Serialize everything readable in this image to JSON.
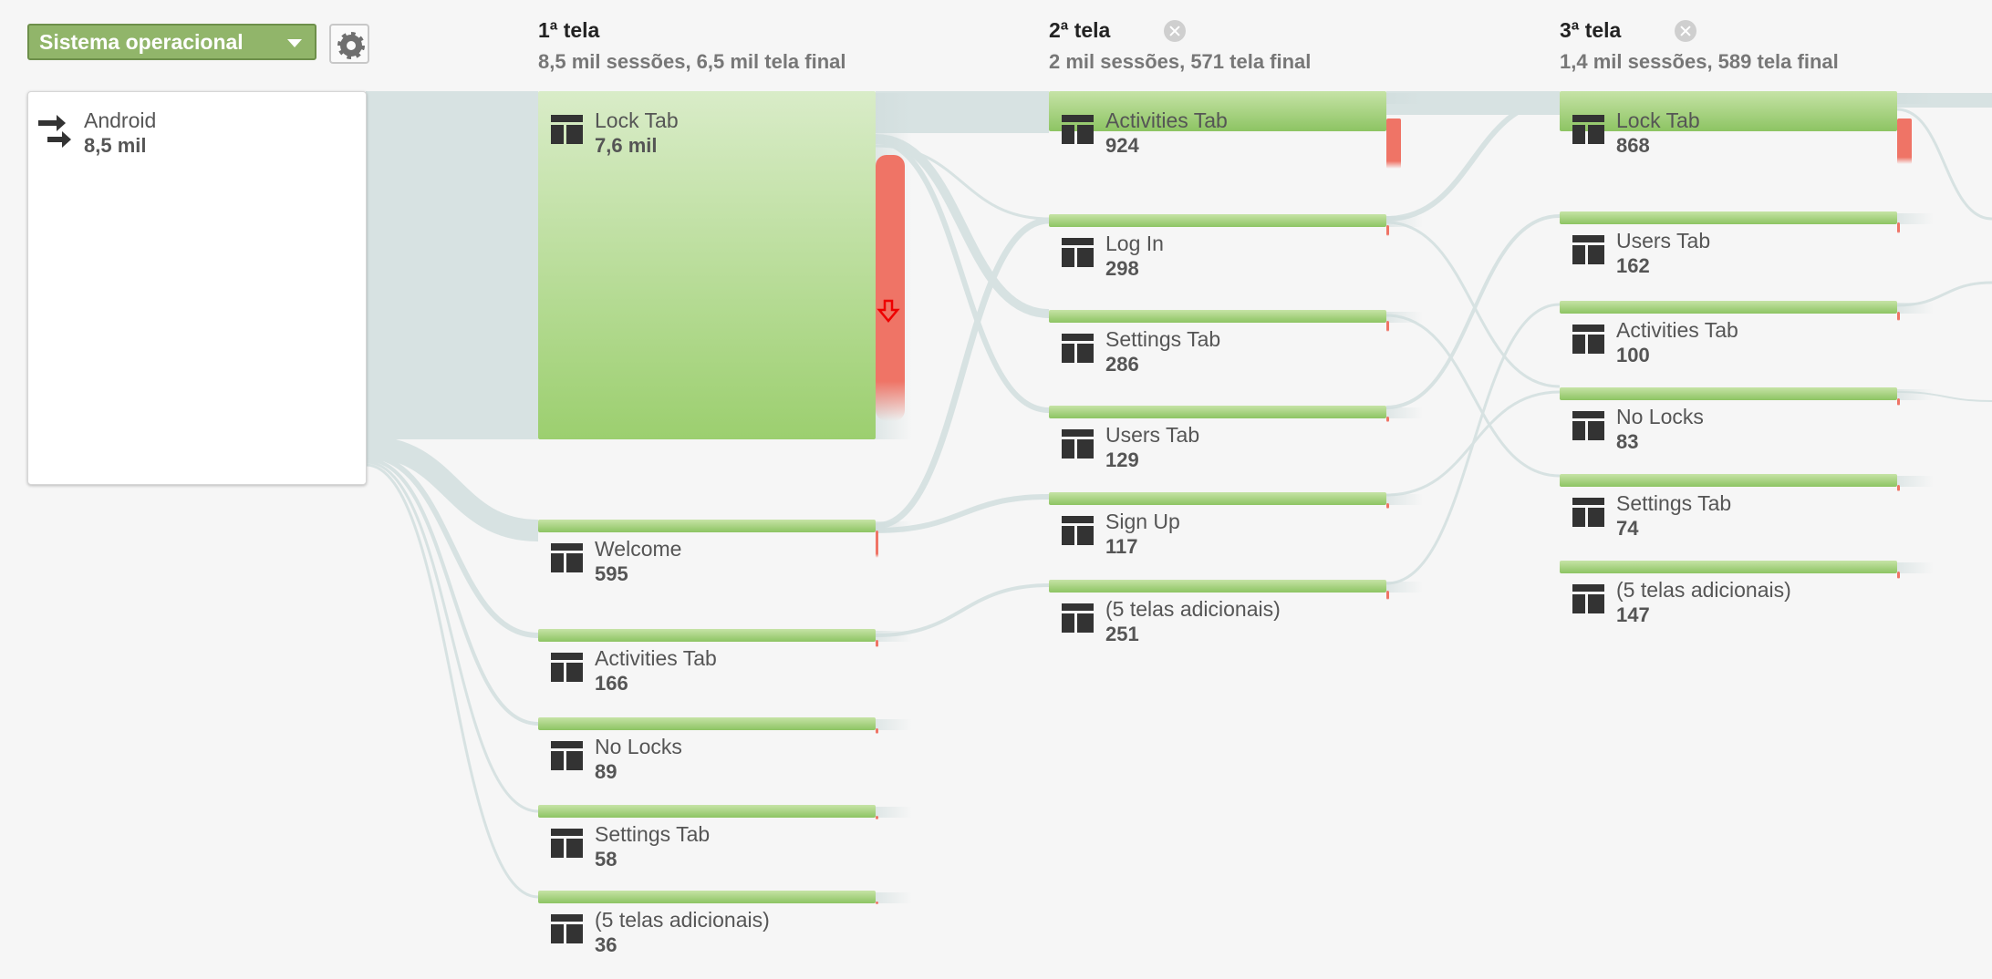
{
  "dimension_selector": {
    "label": "Sistema operacional"
  },
  "source": {
    "label": "Android",
    "value": "8,5 mil"
  },
  "columns": [
    {
      "title": "1ª tela",
      "subtitle": "8,5 mil sessões, 6,5 mil tela final",
      "removable": false,
      "nodes": [
        {
          "label": "Lock Tab",
          "value": "7,6 mil"
        },
        {
          "label": "Welcome",
          "value": "595"
        },
        {
          "label": "Activities Tab",
          "value": "166"
        },
        {
          "label": "No Locks",
          "value": "89"
        },
        {
          "label": "Settings Tab",
          "value": "58"
        },
        {
          "label": "(5 telas adicionais)",
          "value": "36"
        }
      ]
    },
    {
      "title": "2ª tela",
      "subtitle": "2 mil sessões, 571 tela final",
      "removable": true,
      "nodes": [
        {
          "label": "Activities Tab",
          "value": "924"
        },
        {
          "label": "Log In",
          "value": "298"
        },
        {
          "label": "Settings Tab",
          "value": "286"
        },
        {
          "label": "Users Tab",
          "value": "129"
        },
        {
          "label": "Sign Up",
          "value": "117"
        },
        {
          "label": "(5 telas adicionais)",
          "value": "251"
        }
      ]
    },
    {
      "title": "3ª tela",
      "subtitle": "1,4 mil sessões, 589 tela final",
      "removable": true,
      "nodes": [
        {
          "label": "Lock Tab",
          "value": "868"
        },
        {
          "label": "Users Tab",
          "value": "162"
        },
        {
          "label": "Activities Tab",
          "value": "100"
        },
        {
          "label": "No Locks",
          "value": "83"
        },
        {
          "label": "Settings Tab",
          "value": "74"
        },
        {
          "label": "(5 telas adicionais)",
          "value": "147"
        }
      ]
    }
  ],
  "colors": {
    "background": "#f6f6f6",
    "node_green": "#9ccf6f",
    "node_green_light": "#d9ecc8",
    "dropoff_red": "#ef7466",
    "flow": "#d7e2e2",
    "selector_green": "#91b56a"
  },
  "icons": {
    "source": "traffic-source-arrows-icon",
    "page": "page-layout-icon",
    "dropoff": "dropoff-arrow-icon",
    "settings": "gear-icon",
    "remove_column": "close-circle-icon"
  }
}
